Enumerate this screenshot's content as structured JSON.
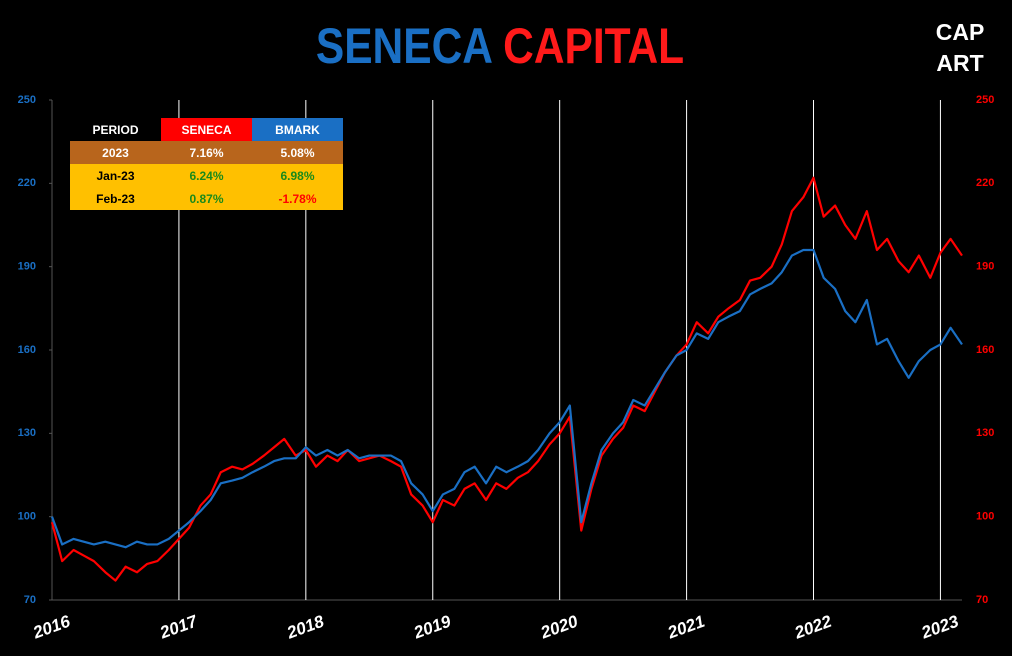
{
  "chart_data": {
    "type": "line",
    "title_parts": [
      {
        "text": "SENECA",
        "color": "#1a6fc4"
      },
      {
        "text": "CAPITAL",
        "color": "#ff1a1a"
      }
    ],
    "logo": [
      "CAP",
      "ART"
    ],
    "x": [
      2016,
      2016.08,
      2016.17,
      2016.25,
      2016.33,
      2016.42,
      2016.5,
      2016.58,
      2016.67,
      2016.75,
      2016.83,
      2016.92,
      2017,
      2017.08,
      2017.17,
      2017.25,
      2017.33,
      2017.42,
      2017.5,
      2017.58,
      2017.67,
      2017.75,
      2017.83,
      2017.92,
      2018,
      2018.08,
      2018.17,
      2018.25,
      2018.33,
      2018.42,
      2018.5,
      2018.58,
      2018.67,
      2018.75,
      2018.83,
      2018.92,
      2019,
      2019.08,
      2019.17,
      2019.25,
      2019.33,
      2019.42,
      2019.5,
      2019.58,
      2019.67,
      2019.75,
      2019.83,
      2019.92,
      2020,
      2020.08,
      2020.17,
      2020.25,
      2020.33,
      2020.42,
      2020.5,
      2020.58,
      2020.67,
      2020.75,
      2020.83,
      2020.92,
      2021,
      2021.08,
      2021.17,
      2021.25,
      2021.33,
      2021.42,
      2021.5,
      2021.58,
      2021.67,
      2021.75,
      2021.83,
      2021.92,
      2022,
      2022.08,
      2022.17,
      2022.25,
      2022.33,
      2022.42,
      2022.5,
      2022.58,
      2022.67,
      2022.75,
      2022.83,
      2022.92,
      2023,
      2023.08,
      2023.17
    ],
    "series": [
      {
        "name": "SENECA",
        "color": "#ff0000",
        "axis": "y2",
        "values": [
          98,
          84,
          88,
          86,
          84,
          80,
          77,
          82,
          80,
          83,
          84,
          88,
          92,
          96,
          104,
          108,
          116,
          118,
          117,
          119,
          122,
          125,
          128,
          122,
          124,
          118,
          122,
          120,
          124,
          120,
          121,
          122,
          120,
          118,
          108,
          104,
          98,
          106,
          104,
          110,
          112,
          106,
          112,
          110,
          114,
          116,
          120,
          126,
          130,
          136,
          95,
          110,
          122,
          128,
          132,
          140,
          138,
          145,
          152,
          158,
          162,
          170,
          166,
          172,
          175,
          178,
          185,
          186,
          190,
          198,
          210,
          215,
          222,
          208,
          212,
          205,
          200,
          210,
          196,
          200,
          192,
          188,
          194,
          186,
          195,
          200,
          194
        ]
      },
      {
        "name": "BMARK",
        "color": "#1a6fc4",
        "values": [
          100,
          90,
          92,
          91,
          90,
          91,
          90,
          89,
          91,
          90,
          90,
          92,
          95,
          98,
          102,
          106,
          112,
          113,
          114,
          116,
          118,
          120,
          121,
          121,
          125,
          122,
          124,
          122,
          124,
          121,
          122,
          122,
          122,
          120,
          112,
          108,
          102,
          108,
          110,
          116,
          118,
          112,
          118,
          116,
          118,
          120,
          124,
          130,
          134,
          140,
          98,
          112,
          124,
          130,
          134,
          142,
          140,
          146,
          152,
          158,
          160,
          166,
          164,
          170,
          172,
          174,
          180,
          182,
          184,
          188,
          194,
          196,
          196,
          186,
          182,
          174,
          170,
          178,
          162,
          164,
          156,
          150,
          156,
          160,
          162,
          168,
          162
        ]
      }
    ],
    "xlim": [
      2016,
      2023.17
    ],
    "xticks": [
      2016,
      2017,
      2018,
      2019,
      2020,
      2021,
      2022,
      2023
    ],
    "ylim": [
      70,
      250
    ],
    "yticks": [
      70,
      100,
      130,
      160,
      190,
      220,
      250
    ],
    "y2lim": [
      70,
      250
    ],
    "y2ticks": [
      70,
      100,
      130,
      160,
      190,
      220,
      250
    ],
    "grid": true,
    "table": {
      "header": [
        "PERIOD",
        "SENECA",
        "BMARK"
      ],
      "rows": [
        [
          "2023",
          "7.16%",
          "5.08%"
        ],
        [
          "Jan-23",
          "6.24%",
          "6.98%"
        ],
        [
          "Feb-23",
          "0.87%",
          "-1.78%"
        ]
      ]
    }
  }
}
